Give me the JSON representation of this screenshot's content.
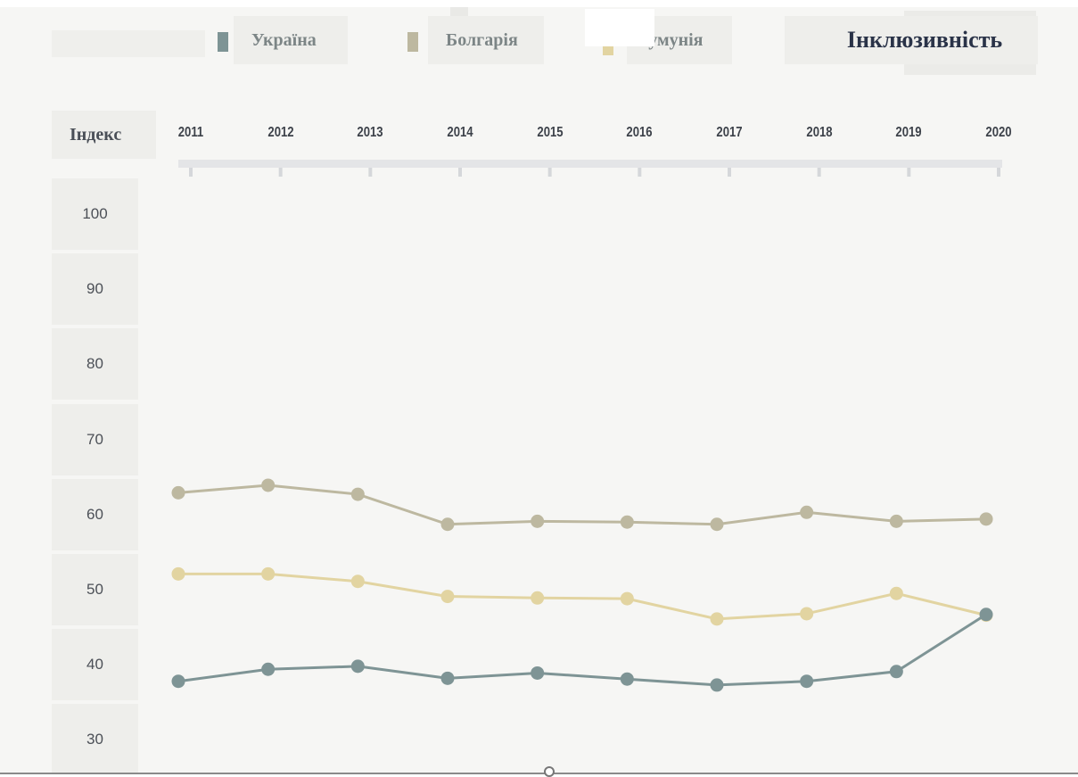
{
  "legend": {
    "items": [
      {
        "label": "Україна",
        "color": "#7e9495"
      },
      {
        "label": "Болгарія",
        "color": "#bdb8a0"
      },
      {
        "label": "Румунія",
        "color": "#e2d4a1"
      }
    ]
  },
  "chart": {
    "title": "Інклюзивність",
    "ylabel": "Індекс"
  },
  "chart_data": {
    "type": "line",
    "title": "Інклюзивність",
    "xlabel": "",
    "ylabel": "Індекс",
    "x": [
      "2011",
      "2012",
      "2013",
      "2014",
      "2015",
      "2016",
      "2017",
      "2018",
      "2019",
      "2020"
    ],
    "yticks": [
      "100",
      "90",
      "80",
      "70",
      "60",
      "50",
      "40",
      "30"
    ],
    "ylim": [
      28,
      100
    ],
    "grid": false,
    "legend_position": "top",
    "series": [
      {
        "name": "Україна",
        "color": "#7e9495",
        "values": [
          37.8,
          39.4,
          39.8,
          38.2,
          38.9,
          38.1,
          37.3,
          37.8,
          39.1,
          46.7
        ]
      },
      {
        "name": "Болгарія",
        "color": "#bdb8a0",
        "values": [
          62.9,
          63.9,
          62.7,
          58.7,
          59.1,
          59.0,
          58.7,
          60.3,
          59.1,
          59.4
        ]
      },
      {
        "name": "Румунія",
        "color": "#e2d4a1",
        "values": [
          52.1,
          52.1,
          51.1,
          49.1,
          48.9,
          48.8,
          46.1,
          46.8,
          49.5,
          46.6
        ]
      }
    ]
  }
}
